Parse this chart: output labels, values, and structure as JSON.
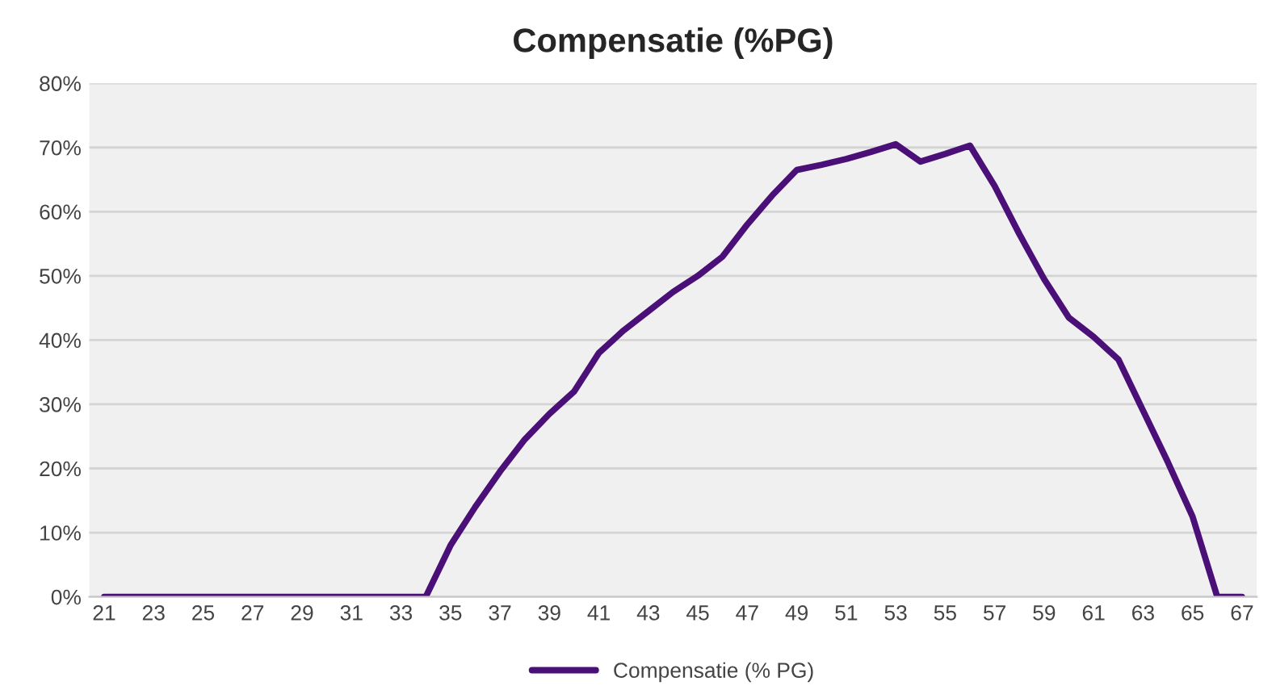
{
  "chart_data": {
    "type": "line",
    "title": "Compensatie (%PG)",
    "categories": [
      "21",
      null,
      "23",
      null,
      "25",
      null,
      "27",
      null,
      "29",
      null,
      "31",
      null,
      "33",
      null,
      "35",
      null,
      "37",
      null,
      "39",
      null,
      "41",
      null,
      "43",
      null,
      "45",
      null,
      "47",
      null,
      "49",
      null,
      "51",
      null,
      "53",
      null,
      "55",
      null,
      "57",
      null,
      "59",
      null,
      "61",
      null,
      "63",
      null,
      "65",
      null,
      "67"
    ],
    "series": [
      {
        "name": "Compensatie (% PG)",
        "color": "#4b0f78",
        "values": [
          0,
          0,
          0,
          0,
          0,
          0,
          0,
          0,
          0,
          0,
          0,
          0,
          0,
          0,
          8,
          14,
          19.5,
          24.5,
          28.5,
          32,
          38,
          41.5,
          44.5,
          47.5,
          50,
          53,
          58,
          62.5,
          66.5,
          67.3,
          68.2,
          69.3,
          70.5,
          67.8,
          69,
          70.3,
          64,
          56.5,
          49.5,
          43.5,
          40.5,
          37,
          29,
          21,
          12.5,
          0,
          0
        ]
      }
    ],
    "ylim": [
      0,
      80
    ],
    "yticks": [
      {
        "value": 0,
        "label": "0%"
      },
      {
        "value": 10,
        "label": "10%"
      },
      {
        "value": 20,
        "label": "20%"
      },
      {
        "value": 30,
        "label": "30%"
      },
      {
        "value": 40,
        "label": "40%"
      },
      {
        "value": 50,
        "label": "50%"
      },
      {
        "value": 60,
        "label": "60%"
      },
      {
        "value": 70,
        "label": "70%"
      },
      {
        "value": 80,
        "label": "80%"
      }
    ],
    "grid": "y",
    "legend": "bottom",
    "marker": "none",
    "line_style": "solid"
  }
}
